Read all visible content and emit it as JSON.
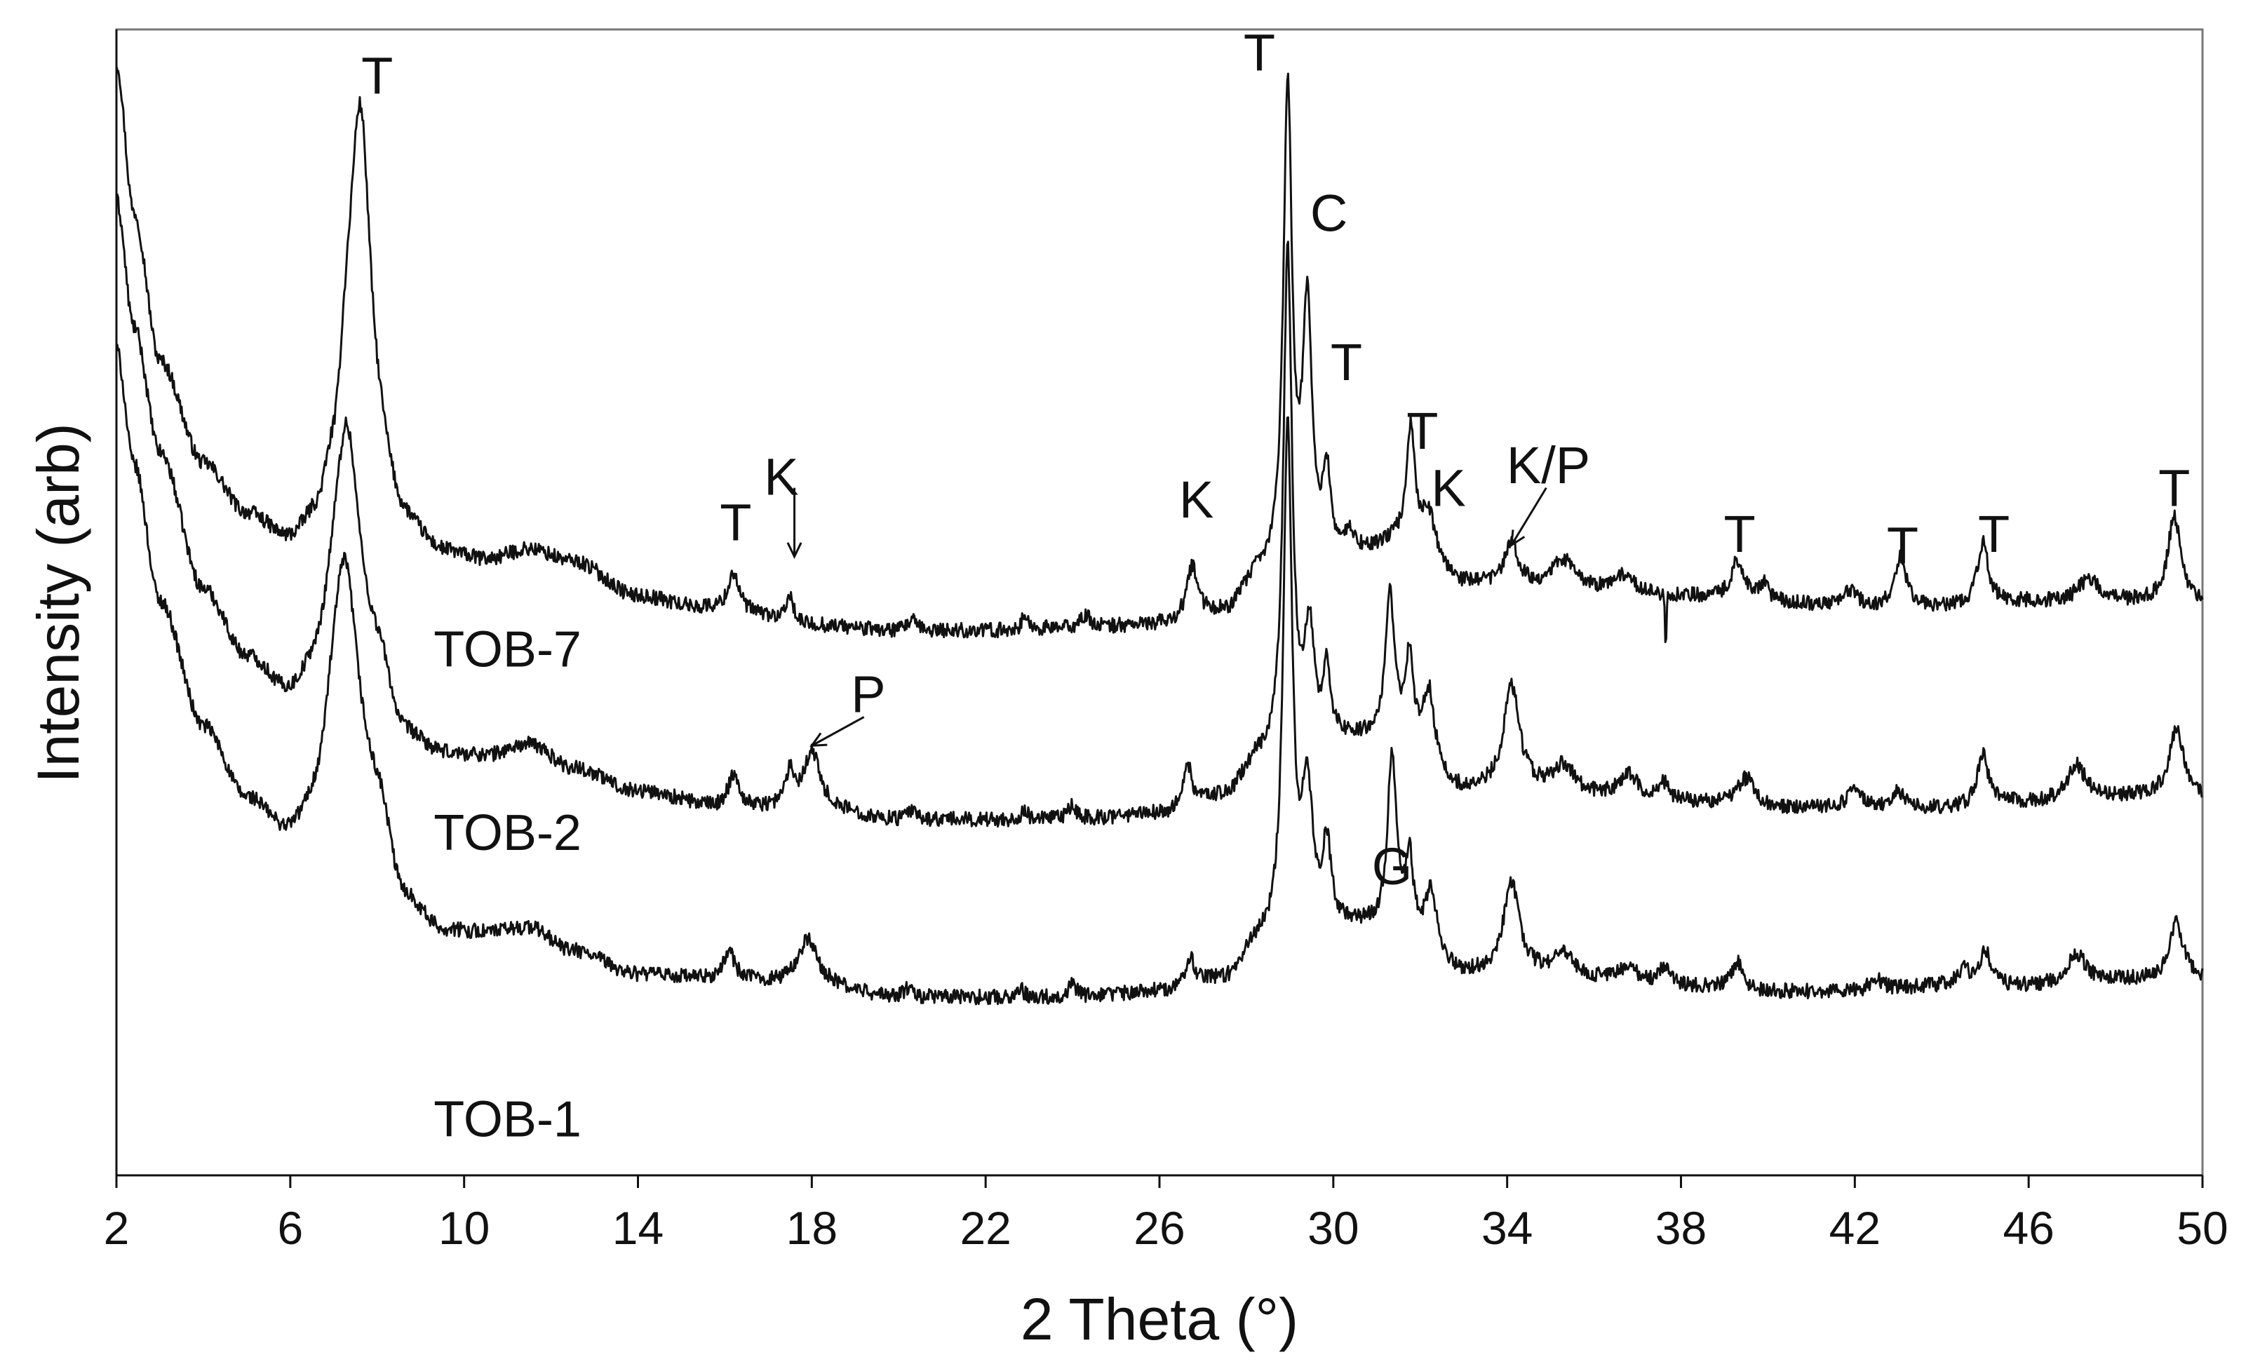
{
  "chart_data": {
    "type": "line",
    "xlabel": "2 Theta (°)",
    "ylabel": "Intensity (arb)",
    "xlim": [
      2,
      50
    ],
    "ylim": [
      0,
      100
    ],
    "xticks": [
      2,
      6,
      10,
      14,
      18,
      22,
      26,
      30,
      34,
      38,
      42,
      46,
      50
    ],
    "grid": false,
    "y_tick_labels_shown": false,
    "series": [
      {
        "name": "TOB-7",
        "label_at": [
          11.0,
          46
        ],
        "baseline": [
          [
            2.0,
            97
          ],
          [
            2.4,
            84
          ],
          [
            3,
            71
          ],
          [
            4,
            62
          ],
          [
            5,
            57.5
          ],
          [
            6,
            55
          ],
          [
            6.6,
            56.5
          ],
          [
            7.0,
            60
          ],
          [
            7.3,
            66
          ],
          [
            8.0,
            60
          ],
          [
            8.6,
            56
          ],
          [
            9.5,
            54
          ],
          [
            10.5,
            53.5
          ],
          [
            11.5,
            54.5
          ],
          [
            12.5,
            53.5
          ],
          [
            14,
            50.5
          ],
          [
            15.5,
            49.5
          ],
          [
            16.5,
            49
          ],
          [
            18,
            48
          ],
          [
            20,
            47.5
          ],
          [
            22,
            47.5
          ],
          [
            24,
            47.7
          ],
          [
            26,
            48
          ],
          [
            27.5,
            49
          ],
          [
            28.3,
            52
          ],
          [
            30.5,
            54
          ],
          [
            31.5,
            55
          ],
          [
            33,
            51.5
          ],
          [
            34,
            51.5
          ],
          [
            36,
            51
          ],
          [
            38,
            50.5
          ],
          [
            40,
            50
          ],
          [
            42,
            49.5
          ],
          [
            44,
            49.5
          ],
          [
            46,
            50
          ],
          [
            48,
            50
          ],
          [
            50,
            50
          ]
        ],
        "peaks": [
          [
            7.62,
            30,
            0.3
          ],
          [
            16.2,
            3.5,
            0.15
          ],
          [
            17.5,
            2.5,
            0.08
          ],
          [
            20.3,
            1.0,
            0.1
          ],
          [
            22.9,
            1.2,
            0.08
          ],
          [
            24.3,
            1.0,
            0.15
          ],
          [
            26.75,
            4.5,
            0.15
          ],
          [
            28.95,
            42,
            0.12
          ],
          [
            29.4,
            22,
            0.13
          ],
          [
            29.85,
            7,
            0.1
          ],
          [
            30.4,
            1.5,
            0.15
          ],
          [
            31.78,
            10,
            0.12
          ],
          [
            32.2,
            4,
            0.2
          ],
          [
            34.1,
            3.5,
            0.18
          ],
          [
            35.3,
            2.5,
            0.3
          ],
          [
            36.7,
            1.5,
            0.25
          ],
          [
            39.3,
            3.5,
            0.18
          ],
          [
            39.9,
            1.5,
            0.12
          ],
          [
            41.9,
            1.5,
            0.2
          ],
          [
            43.05,
            4.5,
            0.15
          ],
          [
            44.95,
            5.5,
            0.15
          ],
          [
            47.4,
            2.0,
            0.3
          ],
          [
            49.35,
            7.5,
            0.18
          ]
        ],
        "dips": [
          [
            37.65,
            4.5,
            0.03
          ]
        ]
      },
      {
        "name": "TOB-2",
        "label_at": [
          11.0,
          30
        ],
        "baseline": [
          [
            2.0,
            85
          ],
          [
            2.4,
            74
          ],
          [
            3,
            63
          ],
          [
            4,
            51
          ],
          [
            5,
            45
          ],
          [
            6,
            41.5
          ],
          [
            6.6,
            43
          ],
          [
            7.0,
            46
          ],
          [
            8.0,
            44
          ],
          [
            8.6,
            38
          ],
          [
            9.5,
            36.5
          ],
          [
            10.5,
            36.5
          ],
          [
            11.5,
            37.5
          ],
          [
            12.5,
            35.5
          ],
          [
            14,
            33.5
          ],
          [
            16,
            32
          ],
          [
            18,
            32
          ],
          [
            20,
            31
          ],
          [
            22,
            31
          ],
          [
            24,
            31
          ],
          [
            26,
            31.5
          ],
          [
            27.5,
            33
          ],
          [
            28.3,
            36
          ],
          [
            30.5,
            38
          ],
          [
            31.5,
            38
          ],
          [
            33,
            33.5
          ],
          [
            34,
            33.5
          ],
          [
            36,
            33
          ],
          [
            38,
            32.5
          ],
          [
            40,
            32
          ],
          [
            42,
            32
          ],
          [
            44,
            32
          ],
          [
            46,
            32.5
          ],
          [
            48,
            33
          ],
          [
            50,
            33
          ]
        ],
        "peaks": [
          [
            7.3,
            20,
            0.35
          ],
          [
            16.2,
            3.0,
            0.15
          ],
          [
            17.5,
            3.0,
            0.12
          ],
          [
            18.0,
            5.0,
            0.22
          ],
          [
            20.3,
            0.8,
            0.1
          ],
          [
            22.9,
            0.8,
            0.08
          ],
          [
            24.0,
            1.2,
            0.12
          ],
          [
            26.65,
            3.5,
            0.12
          ],
          [
            28.95,
            44,
            0.12
          ],
          [
            29.45,
            10,
            0.13
          ],
          [
            29.85,
            6,
            0.1
          ],
          [
            31.3,
            13,
            0.12
          ],
          [
            31.75,
            7,
            0.1
          ],
          [
            32.2,
            6,
            0.15
          ],
          [
            34.1,
            9,
            0.22
          ],
          [
            35.3,
            2.5,
            0.3
          ],
          [
            36.8,
            2.0,
            0.25
          ],
          [
            37.6,
            1.5,
            0.15
          ],
          [
            39.5,
            2.5,
            0.25
          ],
          [
            42.0,
            1.5,
            0.2
          ],
          [
            43.0,
            1.5,
            0.15
          ],
          [
            44.95,
            4.5,
            0.15
          ],
          [
            47.1,
            3.0,
            0.25
          ],
          [
            49.4,
            6.0,
            0.2
          ]
        ],
        "dips": []
      },
      {
        "name": "TOB-1",
        "label_at": [
          11.0,
          5
        ],
        "baseline": [
          [
            2.0,
            72
          ],
          [
            2.4,
            62
          ],
          [
            3,
            50
          ],
          [
            4,
            39
          ],
          [
            5,
            32.5
          ],
          [
            6,
            29
          ],
          [
            6.6,
            30
          ],
          [
            7.0,
            33
          ],
          [
            8.0,
            31
          ],
          [
            8.6,
            23.5
          ],
          [
            9.5,
            21
          ],
          [
            10.5,
            21
          ],
          [
            11.5,
            21.5
          ],
          [
            12.5,
            19.5
          ],
          [
            14,
            17.5
          ],
          [
            16,
            17
          ],
          [
            18,
            16.5
          ],
          [
            20,
            15.5
          ],
          [
            22,
            15.5
          ],
          [
            24,
            15.5
          ],
          [
            26,
            16
          ],
          [
            27.5,
            17
          ],
          [
            28.3,
            20
          ],
          [
            30.5,
            21.5
          ],
          [
            31.5,
            21.5
          ],
          [
            33,
            17.5
          ],
          [
            34,
            17.5
          ],
          [
            36,
            17
          ],
          [
            38,
            16.5
          ],
          [
            40,
            16
          ],
          [
            42,
            16
          ],
          [
            44,
            16.5
          ],
          [
            46,
            16.5
          ],
          [
            48,
            17
          ],
          [
            50,
            17
          ]
        ],
        "peaks": [
          [
            7.25,
            21,
            0.38
          ],
          [
            16.1,
            2.5,
            0.15
          ],
          [
            17.9,
            4.0,
            0.28
          ],
          [
            20.2,
            0.8,
            0.1
          ],
          [
            22.8,
            0.8,
            0.08
          ],
          [
            24.0,
            1.2,
            0.1
          ],
          [
            26.7,
            2.5,
            0.12
          ],
          [
            28.95,
            45,
            0.12
          ],
          [
            29.4,
            12,
            0.15
          ],
          [
            29.85,
            7,
            0.12
          ],
          [
            31.35,
            15,
            0.12
          ],
          [
            31.75,
            6,
            0.1
          ],
          [
            32.25,
            5,
            0.15
          ],
          [
            34.1,
            8,
            0.22
          ],
          [
            35.3,
            2.0,
            0.3
          ],
          [
            36.8,
            1.5,
            0.2
          ],
          [
            37.6,
            1.5,
            0.15
          ],
          [
            39.3,
            2.5,
            0.15
          ],
          [
            42.5,
            1.0,
            0.2
          ],
          [
            44.5,
            1.5,
            0.15
          ],
          [
            45.0,
            3.0,
            0.15
          ],
          [
            47.1,
            2.5,
            0.25
          ],
          [
            49.4,
            5.0,
            0.2
          ]
        ],
        "dips": []
      }
    ],
    "annotations": [
      {
        "text": "T",
        "x": 8.0,
        "y": 96
      },
      {
        "text": "T",
        "x": 16.25,
        "y": 57
      },
      {
        "text": "K",
        "x": 17.3,
        "y": 61
      },
      {
        "text": "K",
        "x": 26.85,
        "y": 59
      },
      {
        "text": "T",
        "x": 28.3,
        "y": 98
      },
      {
        "text": "C",
        "x": 29.9,
        "y": 84
      },
      {
        "text": "T",
        "x": 30.3,
        "y": 71
      },
      {
        "text": "T",
        "x": 32.05,
        "y": 65
      },
      {
        "text": "K",
        "x": 32.65,
        "y": 60
      },
      {
        "text": "K/P",
        "x": 34.95,
        "y": 62
      },
      {
        "text": "T",
        "x": 39.35,
        "y": 56
      },
      {
        "text": "T",
        "x": 43.1,
        "y": 55
      },
      {
        "text": "T",
        "x": 45.2,
        "y": 56
      },
      {
        "text": "T",
        "x": 49.35,
        "y": 60
      },
      {
        "text": "P",
        "x": 19.3,
        "y": 42
      },
      {
        "text": "G",
        "x": 31.35,
        "y": 27
      }
    ],
    "arrows": [
      {
        "from": [
          17.6,
          60
        ],
        "to": [
          17.6,
          54
        ]
      },
      {
        "from": [
          19.2,
          40
        ],
        "to": [
          18.0,
          37.5
        ]
      },
      {
        "from": [
          34.9,
          60
        ],
        "to": [
          34.1,
          55
        ]
      }
    ]
  }
}
